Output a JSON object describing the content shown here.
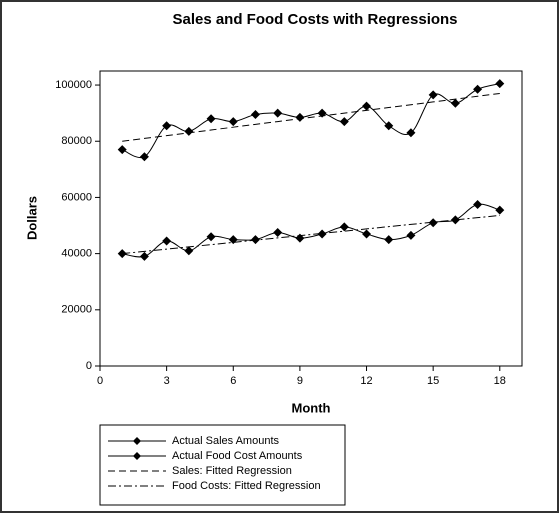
{
  "chart_data": {
    "type": "line",
    "title": "Sales and Food Costs with Regressions",
    "x_label": "Month",
    "y_label": "Dollars",
    "x": [
      1,
      2,
      3,
      4,
      5,
      6,
      7,
      8,
      9,
      10,
      11,
      12,
      13,
      14,
      15,
      16,
      17,
      18
    ],
    "xlim": [
      0,
      19
    ],
    "xticks": [
      0,
      3,
      6,
      9,
      12,
      15,
      18
    ],
    "ylim": [
      0,
      105000
    ],
    "yticks": [
      0,
      20000,
      40000,
      60000,
      80000,
      100000
    ],
    "series": [
      {
        "name": "Actual Sales Amounts",
        "color": "#000000",
        "style": "smooth-marker",
        "values": [
          77000,
          74500,
          85500,
          83500,
          88000,
          87000,
          89500,
          90000,
          88500,
          90000,
          87000,
          92500,
          85500,
          83000,
          96500,
          93500,
          98500,
          100500
        ]
      },
      {
        "name": "Actual Food Cost Amounts",
        "color": "#000000",
        "style": "smooth-marker",
        "values": [
          40000,
          39000,
          44500,
          41000,
          46000,
          45000,
          45000,
          47500,
          45500,
          47000,
          49500,
          47000,
          45000,
          46500,
          51000,
          52000,
          57500,
          55500
        ]
      },
      {
        "name": "Sales: Fitted Regression",
        "color": "#000000",
        "style": "dashed",
        "values": [
          80000,
          81000,
          82000,
          83000,
          84000,
          85000,
          86000,
          87000,
          88000,
          89000,
          90000,
          91000,
          92000,
          93000,
          94000,
          95000,
          96000,
          97000
        ]
      },
      {
        "name": "Food Costs: Fitted Regression",
        "color": "#000000",
        "style": "dashdot",
        "values": [
          40000,
          40800,
          41600,
          42400,
          43200,
          44000,
          44800,
          45600,
          46400,
          47200,
          48000,
          48800,
          49600,
          50400,
          51200,
          52000,
          52800,
          53600
        ]
      }
    ],
    "grid": false
  }
}
